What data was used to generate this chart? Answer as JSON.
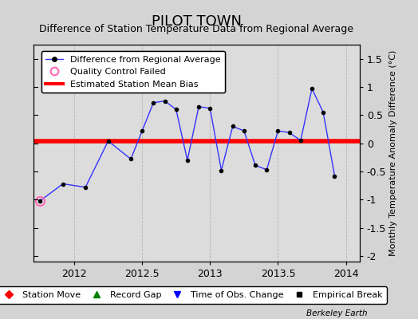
{
  "title": "PILOT TOWN",
  "subtitle": "Difference of Station Temperature Data from Regional Average",
  "ylabel_right": "Monthly Temperature Anomaly Difference (°C)",
  "watermark": "Berkeley Earth",
  "xlim": [
    2011.7,
    2014.1
  ],
  "ylim": [
    -2.1,
    1.75
  ],
  "yticks": [
    -2.0,
    -1.5,
    -1.0,
    -0.5,
    0.0,
    0.5,
    1.0,
    1.5
  ],
  "xticks": [
    2012,
    2012.5,
    2013,
    2013.5,
    2014
  ],
  "bias_value": 0.04,
  "line_color": "#3333FF",
  "bias_color": "#FF0000",
  "fig_facecolor": "#D4D4D4",
  "ax_facecolor": "#DCDCDC",
  "data_x": [
    2011.75,
    2011.917,
    2012.083,
    2012.25,
    2012.417,
    2012.5,
    2012.583,
    2012.667,
    2012.75,
    2012.833,
    2012.917,
    2013.0,
    2013.083,
    2013.167,
    2013.25,
    2013.333,
    2013.417,
    2013.5,
    2013.583,
    2013.667,
    2013.75,
    2013.833,
    2013.917
  ],
  "data_y": [
    -1.02,
    -0.72,
    -0.78,
    0.04,
    -0.28,
    0.22,
    0.72,
    0.75,
    0.6,
    -0.3,
    0.65,
    0.62,
    -0.48,
    0.3,
    0.22,
    -0.39,
    -0.47,
    0.22,
    0.19,
    0.05,
    0.97,
    0.55,
    -0.58
  ],
  "qc_failed_x": [
    2011.75
  ],
  "qc_failed_y": [
    -1.02
  ],
  "title_fontsize": 13,
  "subtitle_fontsize": 9,
  "tick_fontsize": 9,
  "ylabel_fontsize": 8
}
